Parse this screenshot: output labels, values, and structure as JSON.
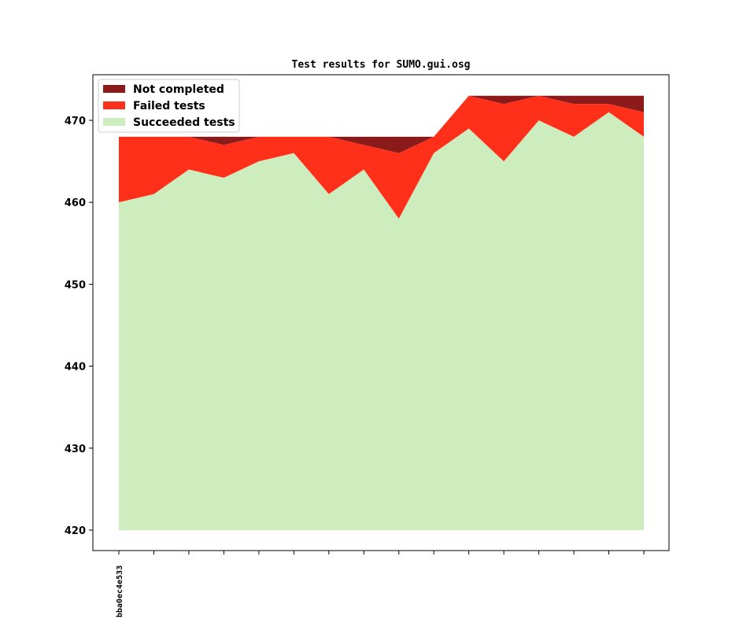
{
  "chart_data": {
    "type": "area",
    "title": "Test results for SUMO.gui.osg",
    "xlabel": "",
    "ylabel": "",
    "x_tick_labels": [
      "bba0ec4e533"
    ],
    "x_count": 16,
    "ylim": [
      420,
      475
    ],
    "yticks": [
      420,
      430,
      440,
      450,
      460,
      470
    ],
    "baseline": 420,
    "grid": false,
    "legend_position": "top-left",
    "series": [
      {
        "name": "Not completed",
        "color": "#8b1a1a",
        "values": [
          0,
          0,
          0,
          1,
          0,
          0,
          0,
          1,
          2,
          0,
          0,
          1,
          0,
          1,
          1,
          2
        ]
      },
      {
        "name": "Failed tests",
        "color": "#ff3019",
        "values": [
          8,
          7,
          4,
          4,
          3,
          2,
          7,
          3,
          8,
          2,
          4,
          7,
          3,
          4,
          1,
          3
        ]
      },
      {
        "name": "Succeeded tests",
        "color": "#ceedbe",
        "values": [
          460,
          461,
          464,
          463,
          465,
          466,
          461,
          464,
          458,
          466,
          469,
          465,
          470,
          468,
          471,
          468
        ]
      }
    ]
  }
}
